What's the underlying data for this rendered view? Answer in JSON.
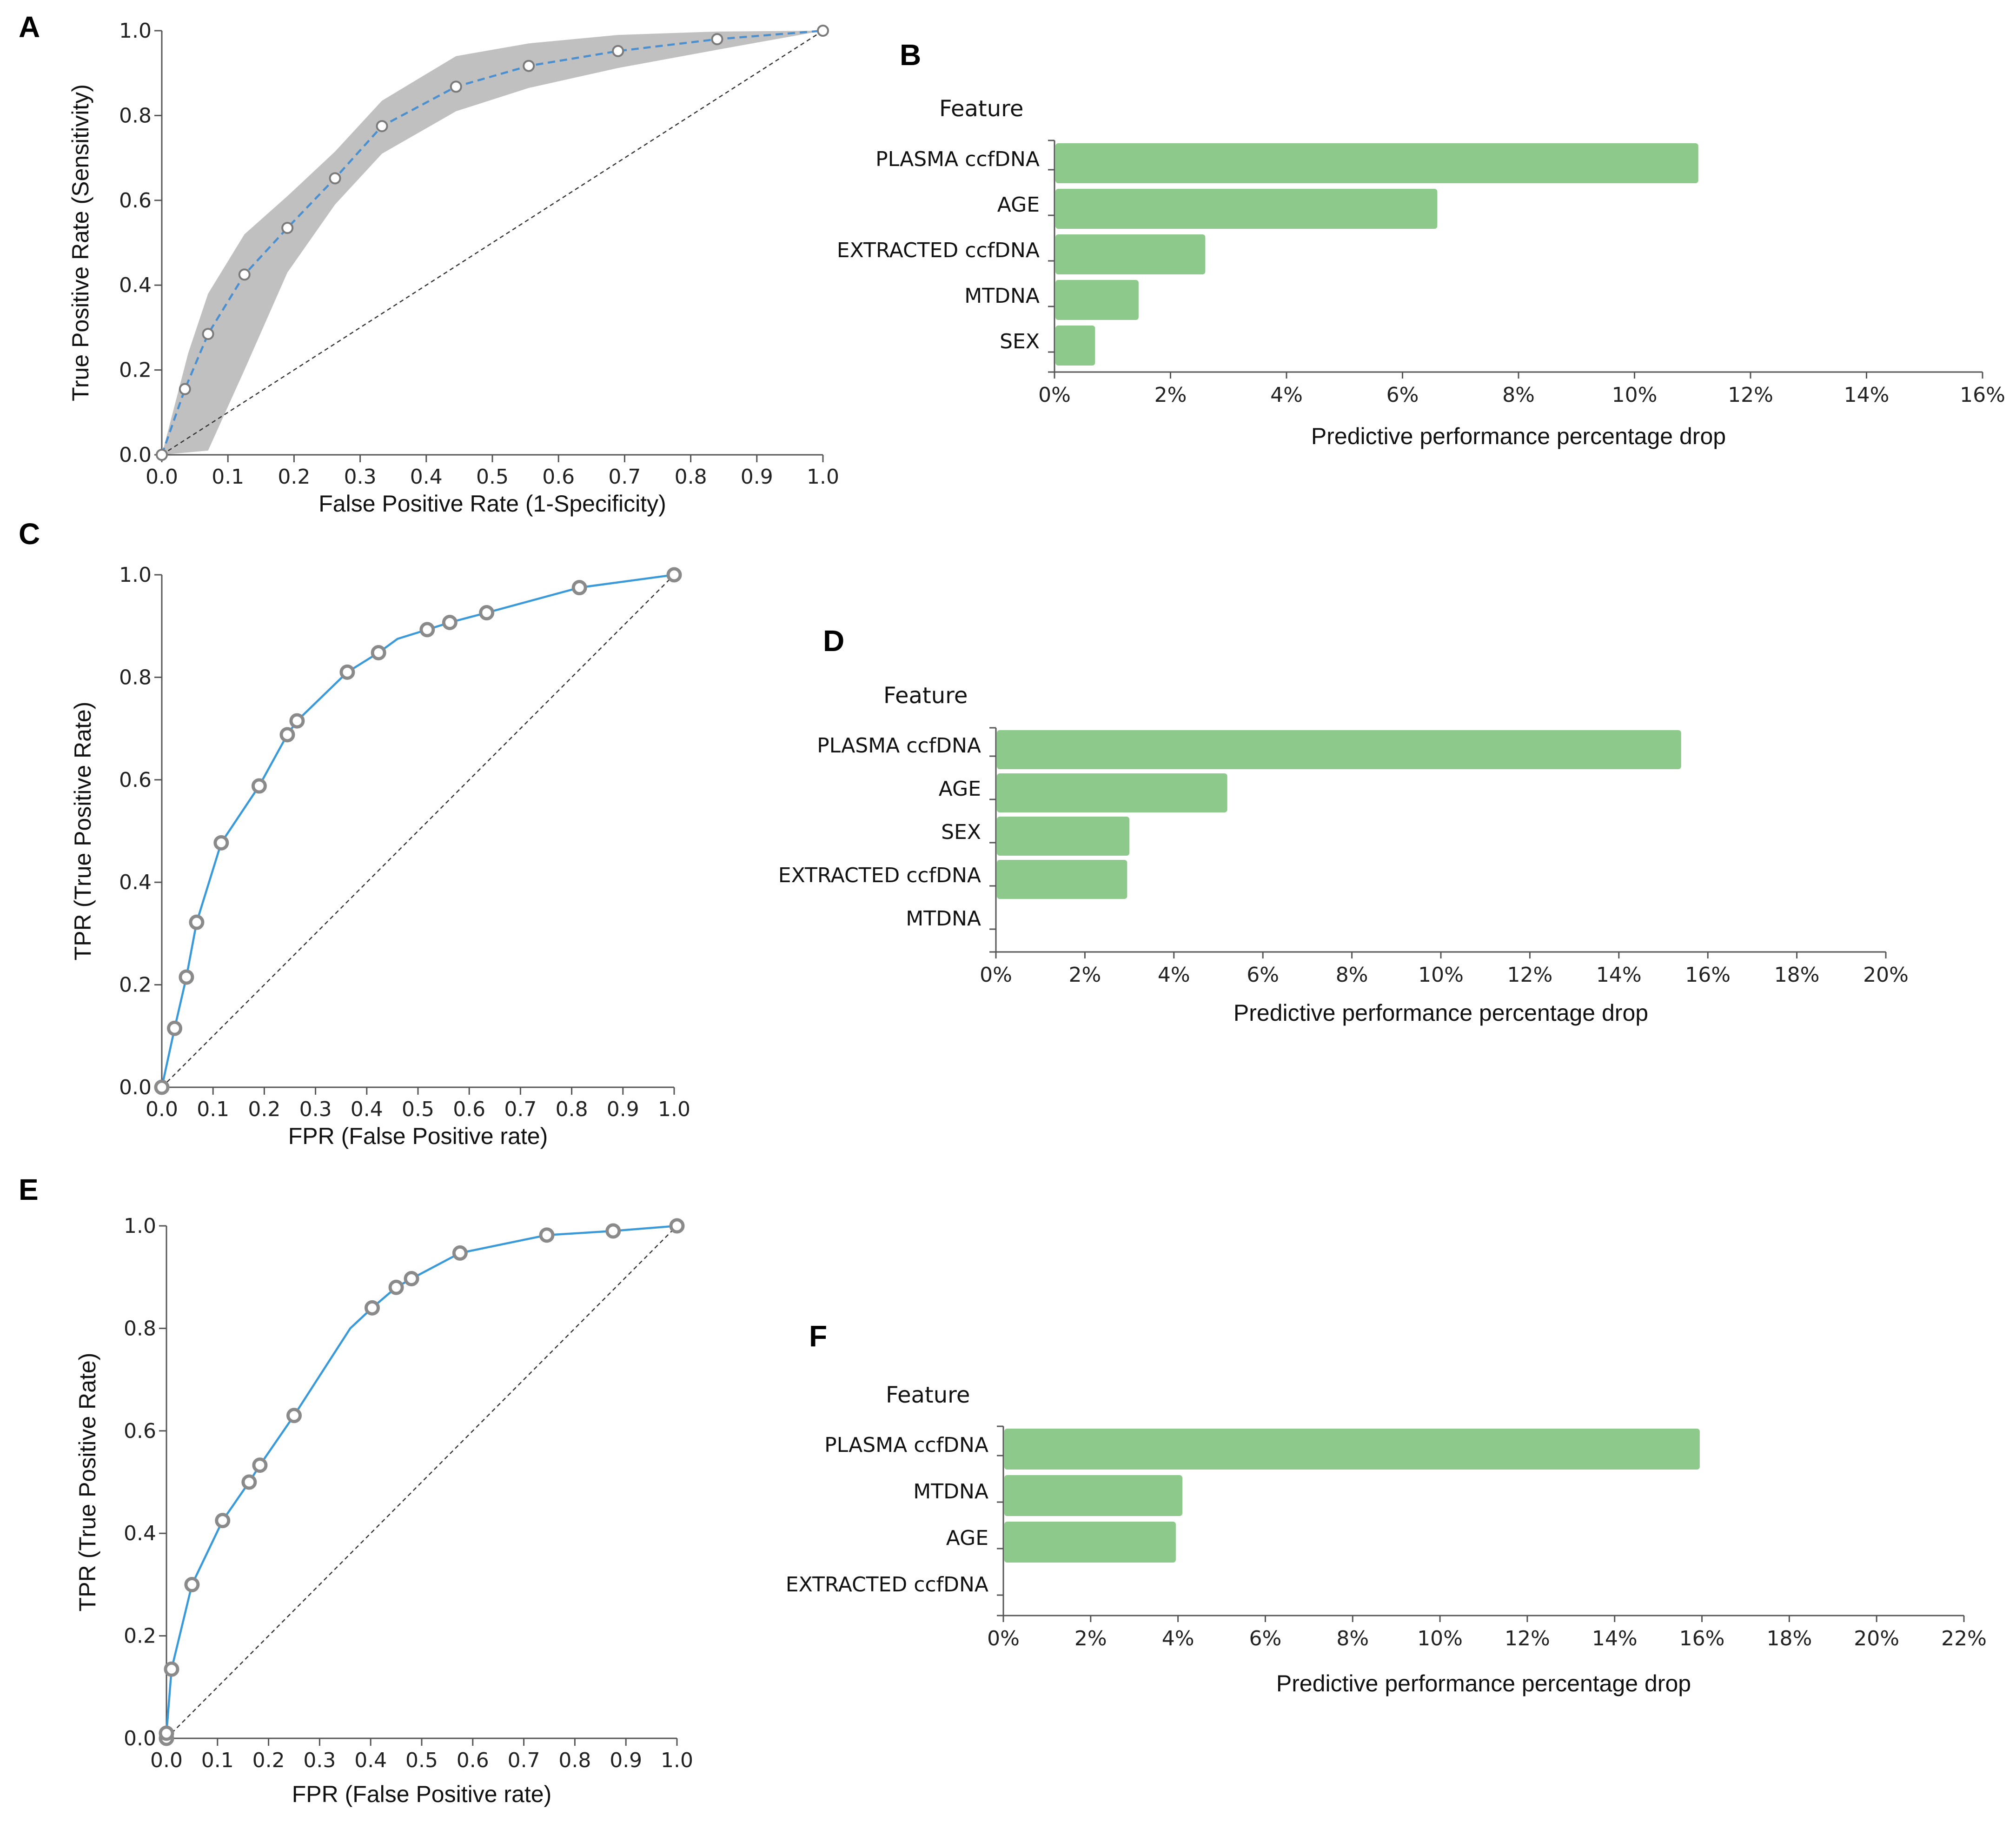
{
  "chart_data": [
    {
      "id": "A",
      "type": "line",
      "panel_label": "A",
      "title": "",
      "xlabel": "False Positive Rate (1-Specificity)",
      "ylabel": "True Positive Rate (Sensitivity)",
      "xlim": [
        0,
        1
      ],
      "ylim": [
        0,
        1
      ],
      "xticks": [
        "0.0",
        "0.1",
        "0.2",
        "0.3",
        "0.4",
        "0.5",
        "0.6",
        "0.7",
        "0.8",
        "0.9",
        "1.0"
      ],
      "yticks": [
        "0.0",
        "0.2",
        "0.4",
        "0.6",
        "0.8",
        "1.0"
      ],
      "line_color": "#4a8fcf",
      "line_style": "dashed",
      "band_color": "#c0c0c0",
      "diagonal": true,
      "curve": [
        [
          0,
          0
        ],
        [
          0.035,
          0.155
        ],
        [
          0.07,
          0.285
        ],
        [
          0.125,
          0.425
        ],
        [
          0.19,
          0.535
        ],
        [
          0.262,
          0.652
        ],
        [
          0.333,
          0.775
        ],
        [
          0.445,
          0.868
        ],
        [
          0.555,
          0.917
        ],
        [
          0.69,
          0.952
        ],
        [
          0.84,
          0.98
        ],
        [
          1,
          1
        ]
      ],
      "markers": [
        [
          0,
          0
        ],
        [
          0.035,
          0.155
        ],
        [
          0.07,
          0.285
        ],
        [
          0.125,
          0.425
        ],
        [
          0.19,
          0.535
        ],
        [
          0.262,
          0.652
        ],
        [
          0.333,
          0.775
        ],
        [
          0.445,
          0.868
        ],
        [
          0.555,
          0.917
        ],
        [
          0.69,
          0.952
        ],
        [
          0.84,
          0.98
        ],
        [
          1,
          1
        ]
      ],
      "band_upper": [
        [
          0,
          0
        ],
        [
          0.04,
          0.24
        ],
        [
          0.07,
          0.38
        ],
        [
          0.125,
          0.52
        ],
        [
          0.19,
          0.61
        ],
        [
          0.262,
          0.715
        ],
        [
          0.333,
          0.835
        ],
        [
          0.445,
          0.94
        ],
        [
          0.555,
          0.97
        ],
        [
          0.69,
          0.99
        ],
        [
          0.84,
          0.998
        ],
        [
          1,
          1
        ]
      ],
      "band_lower": [
        [
          0,
          0
        ],
        [
          0.07,
          0.01
        ],
        [
          0.125,
          0.2
        ],
        [
          0.19,
          0.43
        ],
        [
          0.262,
          0.59
        ],
        [
          0.333,
          0.71
        ],
        [
          0.445,
          0.81
        ],
        [
          0.555,
          0.865
        ],
        [
          0.69,
          0.912
        ],
        [
          0.84,
          0.955
        ],
        [
          1,
          1
        ]
      ]
    },
    {
      "id": "B",
      "type": "bar",
      "orientation": "horizontal",
      "panel_label": "B",
      "header": "Feature",
      "xlabel": "Predictive performance percentage drop",
      "categories": [
        "PLASMA ccfDNA",
        "AGE",
        "EXTRACTED ccfDNA",
        "MTDNA",
        "SEX"
      ],
      "values": [
        11.1,
        6.6,
        2.6,
        1.45,
        0.7
      ],
      "xlim": [
        0,
        16
      ],
      "xticks": [
        "0%",
        "2%",
        "4%",
        "6%",
        "8%",
        "10%",
        "12%",
        "14%",
        "16%"
      ],
      "bar_color": "#8dc98a"
    },
    {
      "id": "C",
      "type": "line",
      "panel_label": "C",
      "xlabel": "FPR (False Positive rate)",
      "ylabel": "TPR (True Positive Rate)",
      "xlim": [
        0,
        1
      ],
      "ylim": [
        0,
        1
      ],
      "xticks": [
        "0.0",
        "0.1",
        "0.2",
        "0.3",
        "0.4",
        "0.5",
        "0.6",
        "0.7",
        "0.8",
        "0.9",
        "1.0"
      ],
      "yticks": [
        "0.0",
        "0.2",
        "0.4",
        "0.6",
        "0.8",
        "1.0"
      ],
      "line_color": "#3a9ad9",
      "line_style": "solid",
      "diagonal": true,
      "curve": [
        [
          0,
          0
        ],
        [
          0.025,
          0.115
        ],
        [
          0.048,
          0.215
        ],
        [
          0.068,
          0.322
        ],
        [
          0.116,
          0.477
        ],
        [
          0.19,
          0.588
        ],
        [
          0.245,
          0.688
        ],
        [
          0.264,
          0.715
        ],
        [
          0.362,
          0.81
        ],
        [
          0.423,
          0.848
        ],
        [
          0.46,
          0.875
        ],
        [
          0.518,
          0.893
        ],
        [
          0.562,
          0.907
        ],
        [
          0.634,
          0.926
        ],
        [
          0.815,
          0.975
        ],
        [
          1,
          1
        ]
      ],
      "markers": [
        [
          0,
          0
        ],
        [
          0.025,
          0.115
        ],
        [
          0.048,
          0.215
        ],
        [
          0.068,
          0.322
        ],
        [
          0.116,
          0.477
        ],
        [
          0.19,
          0.588
        ],
        [
          0.245,
          0.688
        ],
        [
          0.264,
          0.715
        ],
        [
          0.362,
          0.81
        ],
        [
          0.423,
          0.848
        ],
        [
          0.518,
          0.893
        ],
        [
          0.562,
          0.907
        ],
        [
          0.634,
          0.926
        ],
        [
          0.815,
          0.975
        ],
        [
          1,
          1
        ]
      ]
    },
    {
      "id": "D",
      "type": "bar",
      "orientation": "horizontal",
      "panel_label": "D",
      "header": "Feature",
      "xlabel": "Predictive performance percentage drop",
      "categories": [
        "PLASMA ccfDNA",
        "AGE",
        "SEX",
        "EXTRACTED ccfDNA",
        "MTDNA"
      ],
      "values": [
        15.4,
        5.2,
        3.0,
        2.95,
        0
      ],
      "xlim": [
        0,
        20
      ],
      "xticks": [
        "0%",
        "2%",
        "4%",
        "6%",
        "8%",
        "10%",
        "12%",
        "14%",
        "16%",
        "18%",
        "20%"
      ],
      "bar_color": "#8dc98a"
    },
    {
      "id": "E",
      "type": "line",
      "panel_label": "E",
      "xlabel": "FPR (False Positive rate)",
      "ylabel": "TPR (True Positive Rate)",
      "xlim": [
        0,
        1
      ],
      "ylim": [
        0,
        1
      ],
      "xticks": [
        "0.0",
        "0.1",
        "0.2",
        "0.3",
        "0.4",
        "0.5",
        "0.6",
        "0.7",
        "0.8",
        "0.9",
        "1.0"
      ],
      "yticks": [
        "0.0",
        "0.2",
        "0.4",
        "0.6",
        "0.8",
        "1.0"
      ],
      "line_color": "#3a9ad9",
      "line_style": "solid",
      "diagonal": true,
      "curve": [
        [
          0,
          0
        ],
        [
          0,
          0.01
        ],
        [
          0.01,
          0.135
        ],
        [
          0.05,
          0.3
        ],
        [
          0.11,
          0.425
        ],
        [
          0.162,
          0.5
        ],
        [
          0.183,
          0.533
        ],
        [
          0.25,
          0.63
        ],
        [
          0.36,
          0.8
        ],
        [
          0.403,
          0.84
        ],
        [
          0.45,
          0.88
        ],
        [
          0.48,
          0.897
        ],
        [
          0.575,
          0.947
        ],
        [
          0.745,
          0.982
        ],
        [
          0.875,
          0.99
        ],
        [
          1,
          1
        ]
      ],
      "markers": [
        [
          0,
          0
        ],
        [
          0,
          0.01
        ],
        [
          0.01,
          0.135
        ],
        [
          0.05,
          0.3
        ],
        [
          0.11,
          0.425
        ],
        [
          0.162,
          0.5
        ],
        [
          0.183,
          0.533
        ],
        [
          0.25,
          0.63
        ],
        [
          0.403,
          0.84
        ],
        [
          0.45,
          0.88
        ],
        [
          0.48,
          0.897
        ],
        [
          0.575,
          0.947
        ],
        [
          0.745,
          0.982
        ],
        [
          0.875,
          0.99
        ],
        [
          1,
          1
        ]
      ]
    },
    {
      "id": "F",
      "type": "bar",
      "orientation": "horizontal",
      "panel_label": "F",
      "header": "Feature",
      "xlabel": "Predictive performance percentage drop",
      "categories": [
        "PLASMA ccfDNA",
        "MTDNA",
        "AGE",
        "EXTRACTED ccfDNA"
      ],
      "values": [
        15.95,
        4.1,
        3.95,
        0
      ],
      "xlim": [
        0,
        22
      ],
      "xticks": [
        "0%",
        "2%",
        "4%",
        "6%",
        "8%",
        "10%",
        "12%",
        "14%",
        "16%",
        "18%",
        "20%",
        "22%"
      ],
      "bar_color": "#8dc98a"
    }
  ]
}
